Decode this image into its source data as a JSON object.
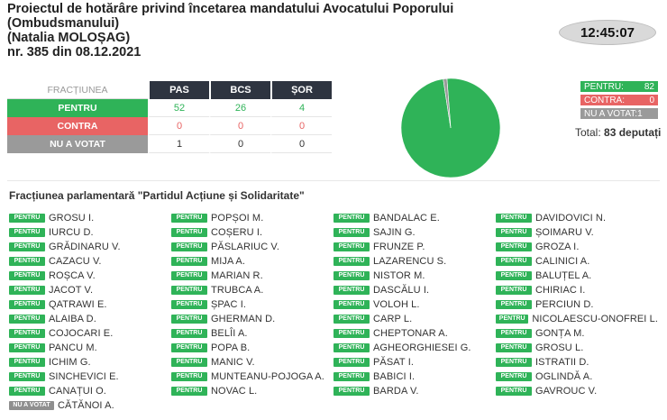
{
  "header": {
    "title_line1": "Proiectul de hotărâre privind încetarea mandatului Avocatului Poporului",
    "title_line2": "(Ombudsmanului)",
    "title_line3": "(Natalia MOLOȘAG)",
    "title_line4": "nr. 385 din 08.12.2021",
    "clock": "12:45:07"
  },
  "results_table": {
    "faction_header": "FRACȚIUNEA",
    "parties": [
      "PAS",
      "BCS",
      "ȘOR"
    ],
    "rows": [
      {
        "label": "PENTRU",
        "values": [
          "52",
          "26",
          "4"
        ]
      },
      {
        "label": "CONTRA",
        "values": [
          "0",
          "0",
          "0"
        ]
      },
      {
        "label": "NU A VOTAT",
        "values": [
          "1",
          "0",
          "0"
        ]
      }
    ]
  },
  "pie": {
    "pentru": 82,
    "contra": 0,
    "nu_a_votat": 1,
    "colors": {
      "pentru": "#2fb358",
      "contra": "#e86464",
      "nu_a_votat": "#9a9a9a"
    }
  },
  "legend": {
    "pentru_label": "PENTRU:",
    "pentru_value": "82",
    "contra_label": "CONTRA:",
    "contra_value": "0",
    "nuavotat_label": "NU A VOTAT:1"
  },
  "total": {
    "label": "Total:",
    "value": "83 deputați"
  },
  "faction_title": "Fracțiunea parlamentară \"Partidul Acțiune și Solidaritate\"",
  "deputies": [
    {
      "vote": "PENTRU",
      "name": "GROSU I."
    },
    {
      "vote": "PENTRU",
      "name": "POPȘOI M."
    },
    {
      "vote": "PENTRU",
      "name": "BANDALAC E."
    },
    {
      "vote": "PENTRU",
      "name": "DAVIDOVICI N."
    },
    {
      "vote": "PENTRU",
      "name": "IURCU D."
    },
    {
      "vote": "PENTRU",
      "name": "COȘERU I."
    },
    {
      "vote": "PENTRU",
      "name": "SAJIN G."
    },
    {
      "vote": "PENTRU",
      "name": "ȘOIMARU V."
    },
    {
      "vote": "PENTRU",
      "name": "GRĂDINARU V."
    },
    {
      "vote": "PENTRU",
      "name": "PĂSLARIUC V."
    },
    {
      "vote": "PENTRU",
      "name": "FRUNZE P."
    },
    {
      "vote": "PENTRU",
      "name": "GROZA I."
    },
    {
      "vote": "PENTRU",
      "name": "CAZACU V."
    },
    {
      "vote": "PENTRU",
      "name": "MIJA A."
    },
    {
      "vote": "PENTRU",
      "name": "LAZARENCU S."
    },
    {
      "vote": "PENTRU",
      "name": "CALINICI A."
    },
    {
      "vote": "PENTRU",
      "name": "ROȘCA V."
    },
    {
      "vote": "PENTRU",
      "name": "MARIAN R."
    },
    {
      "vote": "PENTRU",
      "name": "NISTOR M."
    },
    {
      "vote": "PENTRU",
      "name": "BALUȚEL A."
    },
    {
      "vote": "PENTRU",
      "name": "JACOT V."
    },
    {
      "vote": "PENTRU",
      "name": "TRUBCA A."
    },
    {
      "vote": "PENTRU",
      "name": "DASCĂLU I."
    },
    {
      "vote": "PENTRU",
      "name": "CHIRIAC I."
    },
    {
      "vote": "PENTRU",
      "name": "QATRAWI E."
    },
    {
      "vote": "PENTRU",
      "name": "ȘPAC I."
    },
    {
      "vote": "PENTRU",
      "name": "VOLOH L."
    },
    {
      "vote": "PENTRU",
      "name": "PERCIUN D."
    },
    {
      "vote": "PENTRU",
      "name": "ALAIBA D."
    },
    {
      "vote": "PENTRU",
      "name": "GHERMAN D."
    },
    {
      "vote": "PENTRU",
      "name": "CARP L."
    },
    {
      "vote": "PENTRU",
      "name": "NICOLAESCU-ONOFREI L."
    },
    {
      "vote": "PENTRU",
      "name": "COJOCARI E."
    },
    {
      "vote": "PENTRU",
      "name": "BELÎI A."
    },
    {
      "vote": "PENTRU",
      "name": "CHEPTONAR A."
    },
    {
      "vote": "PENTRU",
      "name": "GONȚA M."
    },
    {
      "vote": "PENTRU",
      "name": "PANCU M."
    },
    {
      "vote": "PENTRU",
      "name": "POPA B."
    },
    {
      "vote": "PENTRU",
      "name": "AGHEORGHIESEI G."
    },
    {
      "vote": "PENTRU",
      "name": "GROSU L."
    },
    {
      "vote": "PENTRU",
      "name": "ICHIM G."
    },
    {
      "vote": "PENTRU",
      "name": "MANIC V."
    },
    {
      "vote": "PENTRU",
      "name": "PĂSAT I."
    },
    {
      "vote": "PENTRU",
      "name": "ISTRATII D."
    },
    {
      "vote": "PENTRU",
      "name": "SINCHEVICI E."
    },
    {
      "vote": "PENTRU",
      "name": "MUNTEANU-POJOGA A."
    },
    {
      "vote": "PENTRU",
      "name": "BABICI I."
    },
    {
      "vote": "PENTRU",
      "name": "OGLINDĂ A."
    },
    {
      "vote": "PENTRU",
      "name": "CANAȚUI O."
    },
    {
      "vote": "PENTRU",
      "name": "NOVAC L."
    },
    {
      "vote": "PENTRU",
      "name": "BARDA V."
    },
    {
      "vote": "PENTRU",
      "name": "GAVROUC V."
    },
    {
      "vote": "NU A VOTAT",
      "name": "CĂTĂNOI A."
    }
  ]
}
